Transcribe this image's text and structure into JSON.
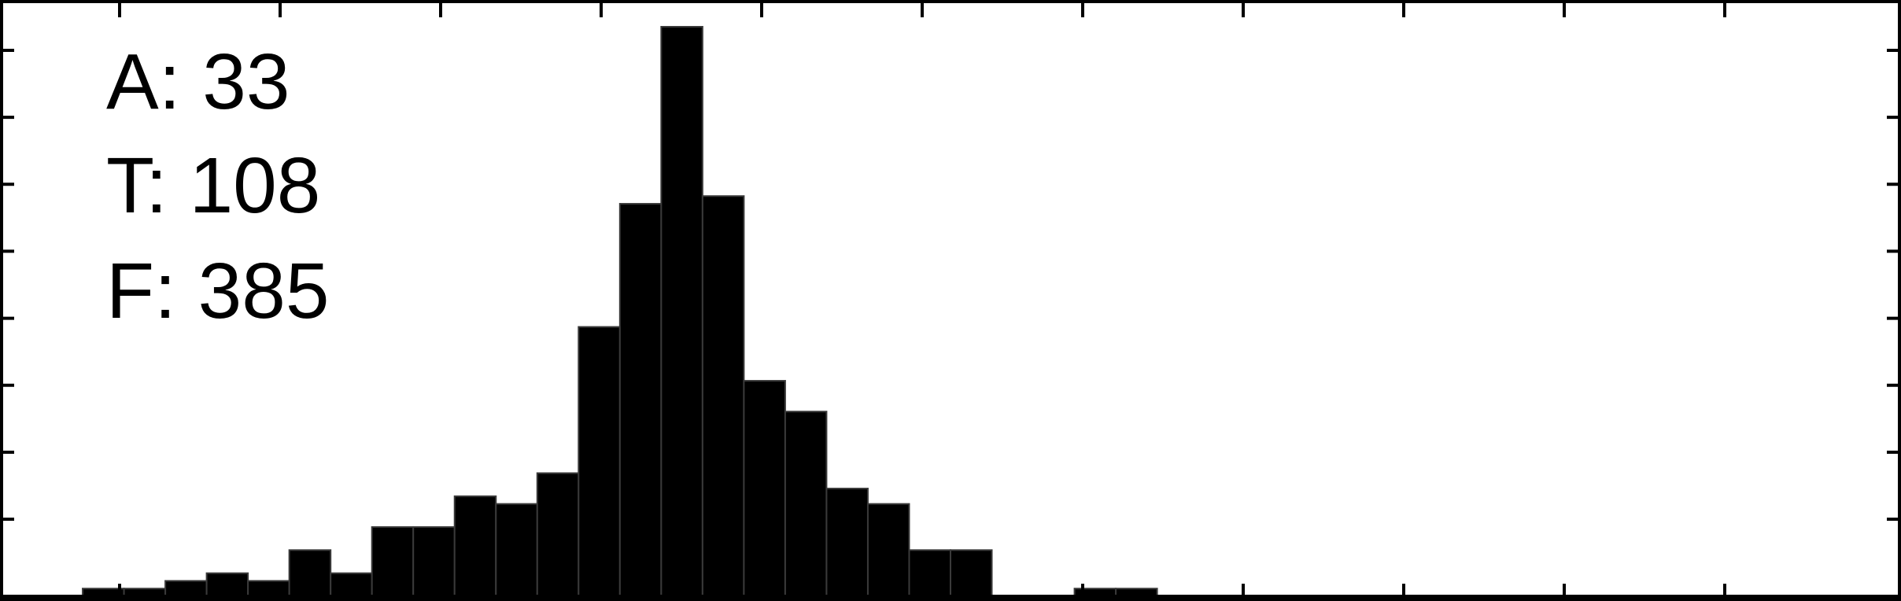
{
  "chart_data": {
    "type": "bar",
    "title": "",
    "xlabel": "",
    "ylabel": "",
    "bin_count": 46,
    "values": [
      0,
      0,
      1,
      1,
      2,
      3,
      2,
      6,
      3,
      9,
      9,
      13,
      12,
      16,
      35,
      51,
      74,
      52,
      28,
      24,
      14,
      12,
      6,
      6,
      0,
      0,
      1,
      1,
      0,
      0,
      0,
      0,
      0,
      0,
      0,
      0,
      0,
      0,
      0,
      0,
      0,
      0,
      0,
      0,
      0,
      0
    ],
    "ylim": [
      0,
      74
    ],
    "grid": false,
    "x_tick_count": 11,
    "y_tick_count": 8,
    "annotations": [
      "A: 33",
      "T: 108",
      "F: 385"
    ],
    "bar_color": "#000000",
    "background": "#ffffff"
  }
}
